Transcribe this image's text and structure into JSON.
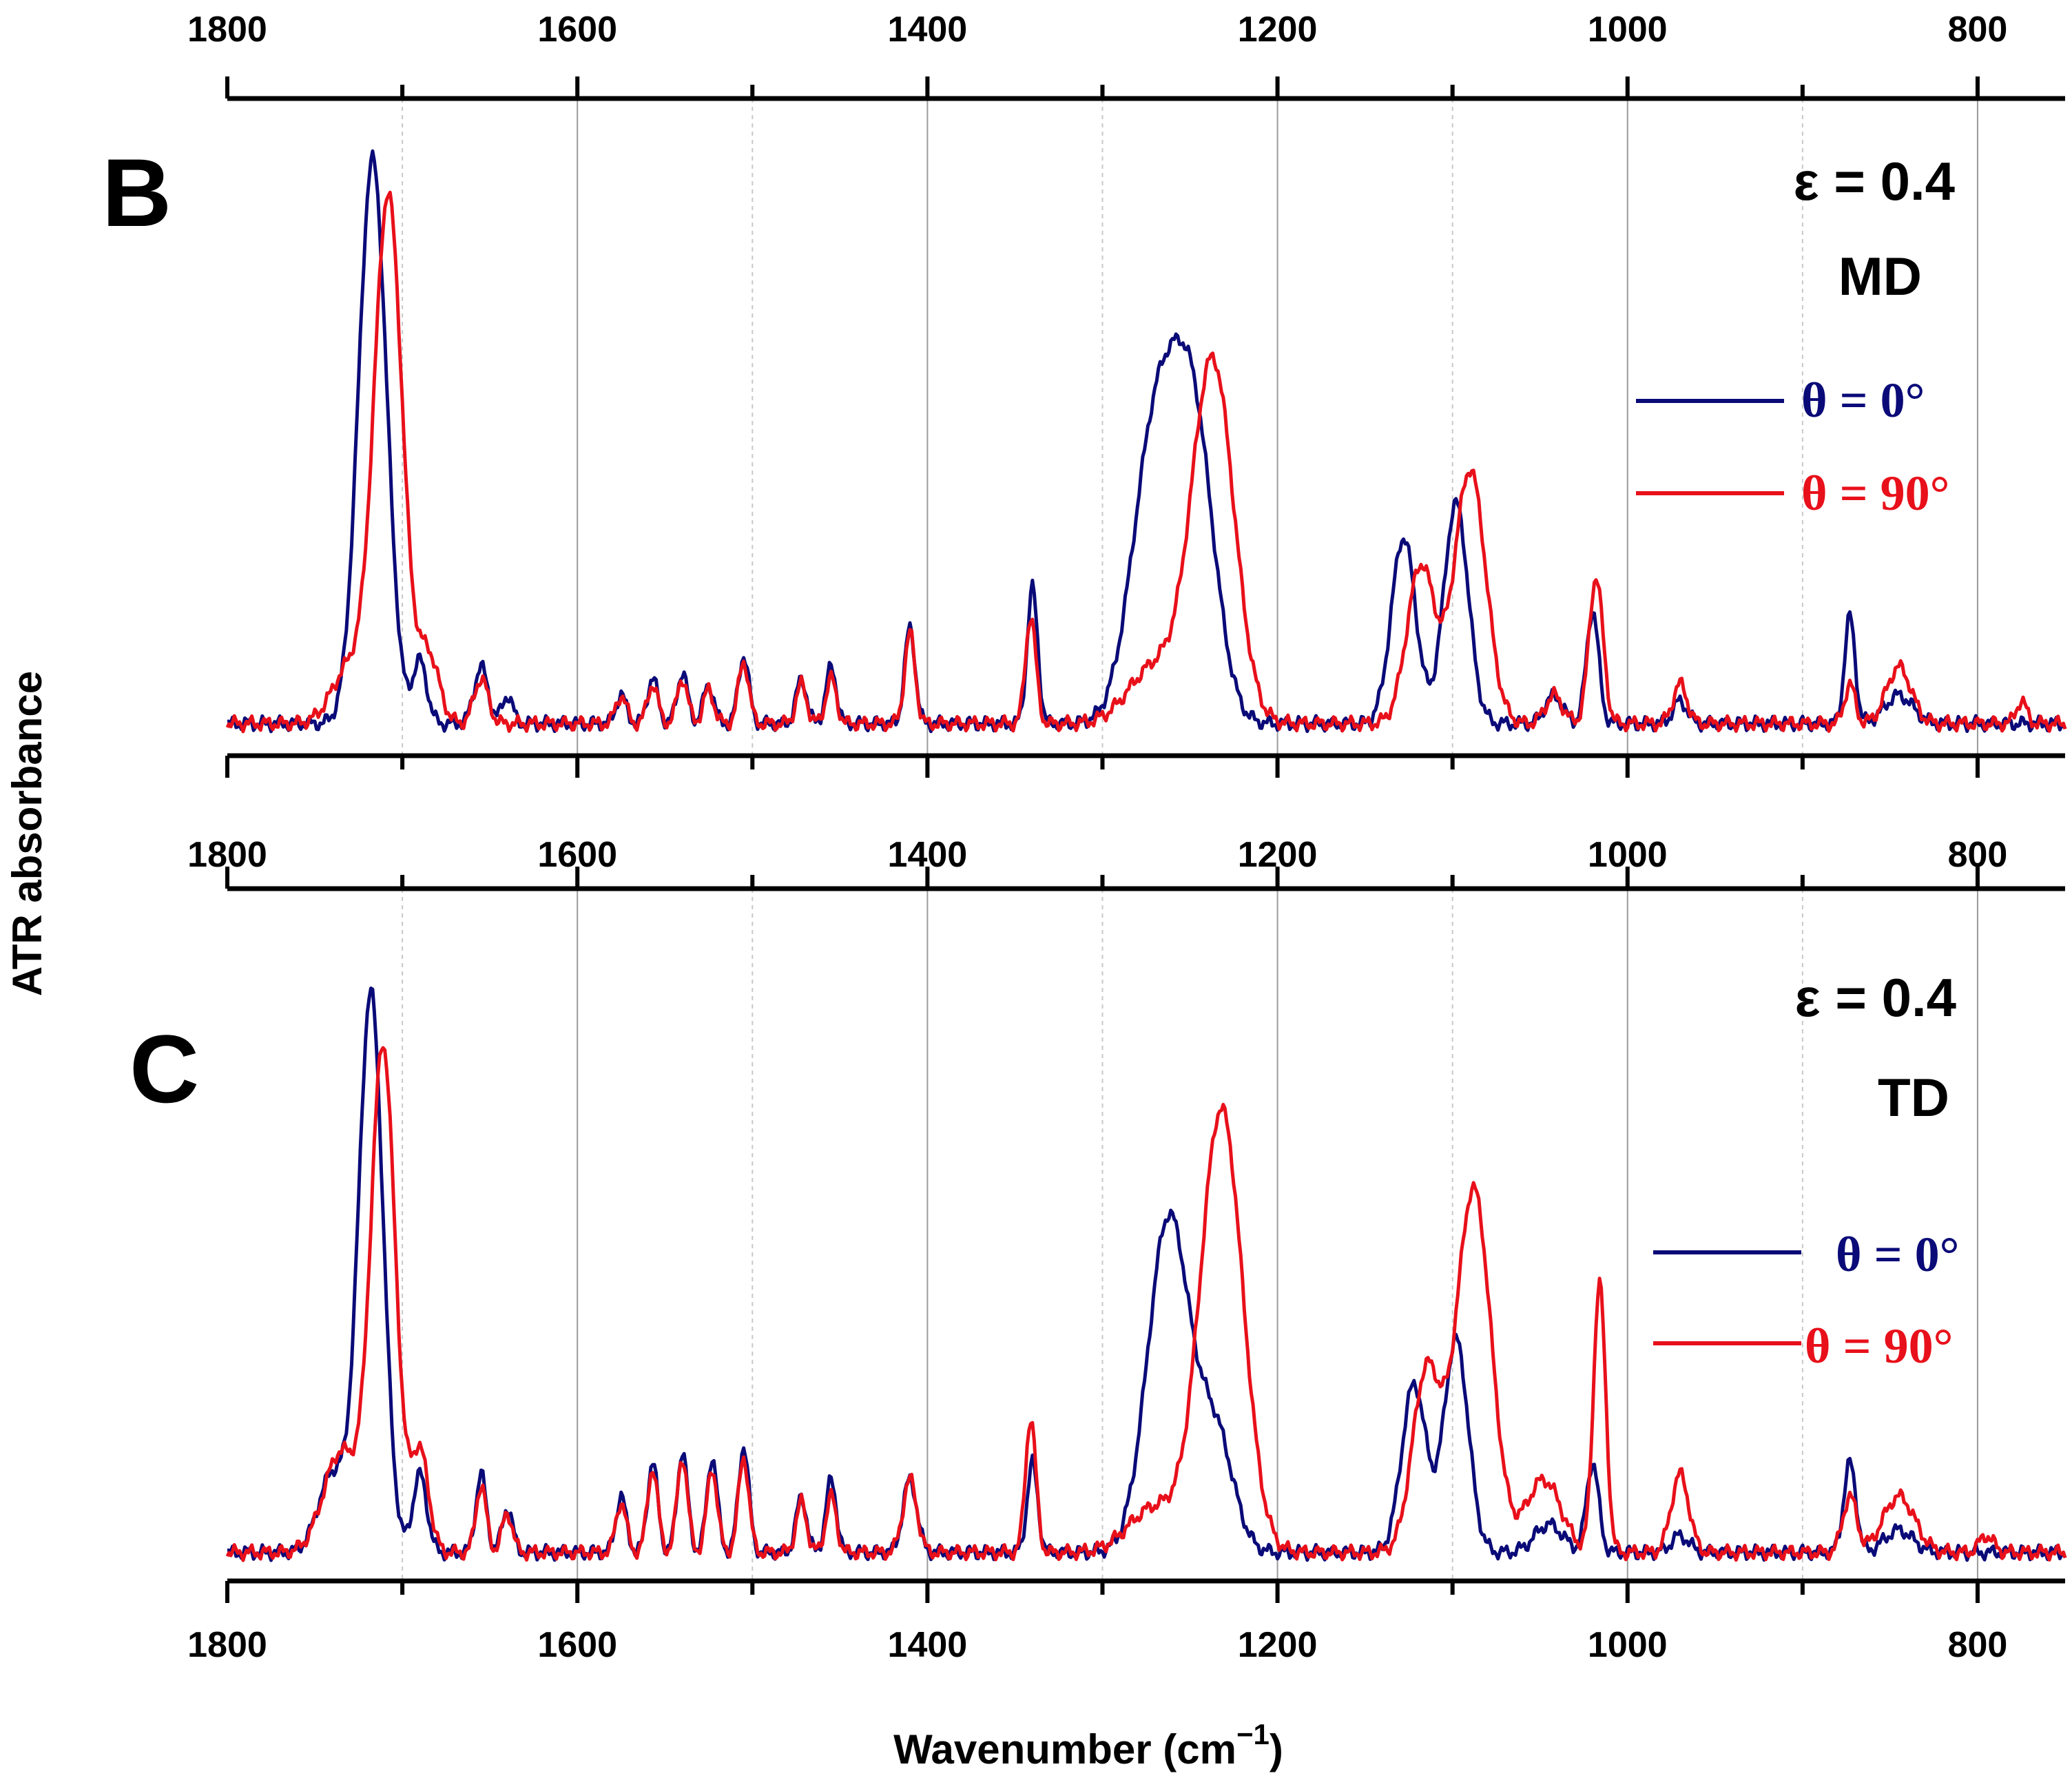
{
  "chart_data": {
    "figure_ylabel": "ATR absorbance",
    "figure_xlabel": "Wavenumber (cm",
    "figure_xlabel_sup": "−1",
    "figure_xlabel_close": ")",
    "colors": {
      "theta_0": "#0a0a78",
      "theta_90": "#e8101a"
    },
    "xlim": [
      1800,
      750
    ],
    "xticks": [
      1800,
      1600,
      1400,
      1200,
      1000,
      800
    ],
    "xtick_labels": [
      "1800",
      "1600",
      "1400",
      "1200",
      "1000",
      "800"
    ],
    "gridlines_major": [
      1600,
      1400,
      1200,
      1000,
      800
    ],
    "gridlines_minor": [
      1700,
      1500,
      1300,
      1100,
      900
    ],
    "panels": [
      {
        "id": "B",
        "type": "line",
        "label": "B",
        "strain": "ε = 0.4",
        "direction": "MD",
        "ylim": [
          0,
          1.0
        ],
        "legend": [
          "θ =  0°",
          "θ = 90°"
        ],
        "series": [
          {
            "name": "θ = 0°",
            "color": "#0a0a78",
            "baseline": 0.03,
            "peaks": [
              [
                1717,
                1.0,
                8
              ],
              [
                1690,
                0.11,
                4
              ],
              [
                1655,
                0.1,
                4
              ],
              [
                1640,
                0.05,
                3
              ],
              [
                1575,
                0.05,
                3
              ],
              [
                1557,
                0.08,
                3
              ],
              [
                1540,
                0.09,
                3
              ],
              [
                1525,
                0.07,
                3
              ],
              [
                1505,
                0.12,
                3
              ],
              [
                1472,
                0.08,
                3
              ],
              [
                1455,
                0.1,
                3
              ],
              [
                1410,
                0.17,
                3
              ],
              [
                1340,
                0.24,
                3
              ],
              [
                1270,
                0.5,
                13
              ],
              [
                1248,
                0.5,
                12
              ],
              [
                1128,
                0.33,
                7
              ],
              [
                1098,
                0.39,
                7
              ],
              [
                1042,
                0.05,
                5
              ],
              [
                1020,
                0.2,
                3.5
              ],
              [
                970,
                0.04,
                4
              ],
              [
                873,
                0.19,
                3
              ],
              [
                845,
                0.05,
                8
              ]
            ]
          },
          {
            "name": "θ = 90°",
            "color": "#e8101a",
            "baseline": 0.03,
            "peaks": [
              [
                1708,
                0.93,
                8
              ],
              [
                1730,
                0.1,
                10
              ],
              [
                1685,
                0.12,
                6
              ],
              [
                1655,
                0.08,
                4
              ],
              [
                1575,
                0.05,
                3
              ],
              [
                1557,
                0.07,
                3
              ],
              [
                1540,
                0.08,
                3
              ],
              [
                1525,
                0.06,
                3
              ],
              [
                1505,
                0.11,
                3
              ],
              [
                1472,
                0.07,
                3
              ],
              [
                1455,
                0.08,
                3
              ],
              [
                1410,
                0.16,
                3
              ],
              [
                1341,
                0.19,
                3
              ],
              [
                1237,
                0.64,
                12
              ],
              [
                1270,
                0.1,
                15
              ],
              [
                1118,
                0.28,
                8
              ],
              [
                1090,
                0.45,
                9
              ],
              [
                1042,
                0.05,
                5
              ],
              [
                1018,
                0.26,
                4
              ],
              [
                970,
                0.07,
                4
              ],
              [
                873,
                0.07,
                3
              ],
              [
                845,
                0.1,
                7
              ],
              [
                775,
                0.04,
                3
              ]
            ]
          }
        ]
      },
      {
        "id": "C",
        "type": "line",
        "label": "C",
        "strain": "ε = 0.4",
        "direction": "TD",
        "ylim": [
          0,
          1.0
        ],
        "legend": [
          "θ = 0°",
          "θ = 90°"
        ],
        "series": [
          {
            "name": "θ = 0°",
            "color": "#0a0a78",
            "baseline": 0.03,
            "peaks": [
              [
                1718,
                1.0,
                7
              ],
              [
                1740,
                0.14,
                8
              ],
              [
                1690,
                0.14,
                4
              ],
              [
                1655,
                0.14,
                3
              ],
              [
                1640,
                0.08,
                3
              ],
              [
                1575,
                0.1,
                3
              ],
              [
                1557,
                0.16,
                3
              ],
              [
                1540,
                0.18,
                3
              ],
              [
                1523,
                0.17,
                3
              ],
              [
                1505,
                0.19,
                3
              ],
              [
                1472,
                0.1,
                3
              ],
              [
                1455,
                0.13,
                3
              ],
              [
                1410,
                0.13,
                4
              ],
              [
                1340,
                0.16,
                3
              ],
              [
                1262,
                0.6,
                12
              ],
              [
                1235,
                0.2,
                10
              ],
              [
                1122,
                0.3,
                7
              ],
              [
                1098,
                0.38,
                7
              ],
              [
                1045,
                0.05,
                8
              ],
              [
                1020,
                0.16,
                3.5
              ],
              [
                970,
                0.03,
                5
              ],
              [
                873,
                0.16,
                3.5
              ],
              [
                845,
                0.04,
                8
              ]
            ]
          },
          {
            "name": "θ = 90°",
            "color": "#e8101a",
            "baseline": 0.03,
            "peaks": [
              [
                1711,
                0.9,
                7
              ],
              [
                1735,
                0.18,
                10
              ],
              [
                1690,
                0.18,
                5
              ],
              [
                1655,
                0.12,
                3
              ],
              [
                1640,
                0.07,
                3
              ],
              [
                1575,
                0.09,
                3
              ],
              [
                1557,
                0.15,
                3
              ],
              [
                1540,
                0.17,
                3
              ],
              [
                1523,
                0.15,
                3
              ],
              [
                1505,
                0.17,
                3
              ],
              [
                1472,
                0.09,
                3
              ],
              [
                1455,
                0.1,
                3
              ],
              [
                1410,
                0.13,
                4
              ],
              [
                1341,
                0.24,
                3
              ],
              [
                1232,
                0.79,
                12
              ],
              [
                1270,
                0.08,
                15
              ],
              [
                1115,
                0.32,
                8
              ],
              [
                1088,
                0.65,
                10
              ],
              [
                1048,
                0.13,
                10
              ],
              [
                1016,
                0.48,
                3.5
              ],
              [
                970,
                0.14,
                5
              ],
              [
                873,
                0.1,
                4
              ],
              [
                845,
                0.1,
                9
              ],
              [
                795,
                0.03,
                4
              ]
            ]
          }
        ]
      }
    ]
  }
}
